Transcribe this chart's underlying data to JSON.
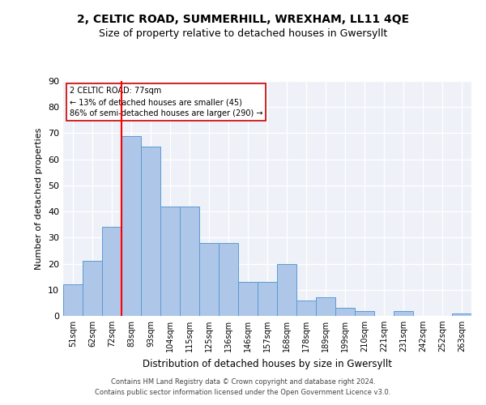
{
  "title": "2, CELTIC ROAD, SUMMERHILL, WREXHAM, LL11 4QE",
  "subtitle": "Size of property relative to detached houses in Gwersyllt",
  "xlabel": "Distribution of detached houses by size in Gwersyllt",
  "ylabel": "Number of detached properties",
  "categories": [
    "51sqm",
    "62sqm",
    "72sqm",
    "83sqm",
    "93sqm",
    "104sqm",
    "115sqm",
    "125sqm",
    "136sqm",
    "146sqm",
    "157sqm",
    "168sqm",
    "178sqm",
    "189sqm",
    "199sqm",
    "210sqm",
    "221sqm",
    "231sqm",
    "242sqm",
    "252sqm",
    "263sqm"
  ],
  "values": [
    12,
    21,
    34,
    69,
    65,
    42,
    42,
    28,
    28,
    13,
    13,
    20,
    6,
    7,
    3,
    2,
    0,
    2,
    0,
    0,
    1
  ],
  "bar_color": "#aec6e8",
  "bar_edge_color": "#5b9bd5",
  "red_line_x": 2.5,
  "annotation_line1": "2 CELTIC ROAD: 77sqm",
  "annotation_line2": "← 13% of detached houses are smaller (45)",
  "annotation_line3": "86% of semi-detached houses are larger (290) →",
  "annotation_box_color": "#ffffff",
  "annotation_box_edge": "#cc0000",
  "ylim": [
    0,
    90
  ],
  "yticks": [
    0,
    10,
    20,
    30,
    40,
    50,
    60,
    70,
    80,
    90
  ],
  "footer1": "Contains HM Land Registry data © Crown copyright and database right 2024.",
  "footer2": "Contains public sector information licensed under the Open Government Licence v3.0.",
  "bg_color": "#eef2f8",
  "title_fontsize": 10,
  "subtitle_fontsize": 9,
  "footer_fontsize": 6
}
